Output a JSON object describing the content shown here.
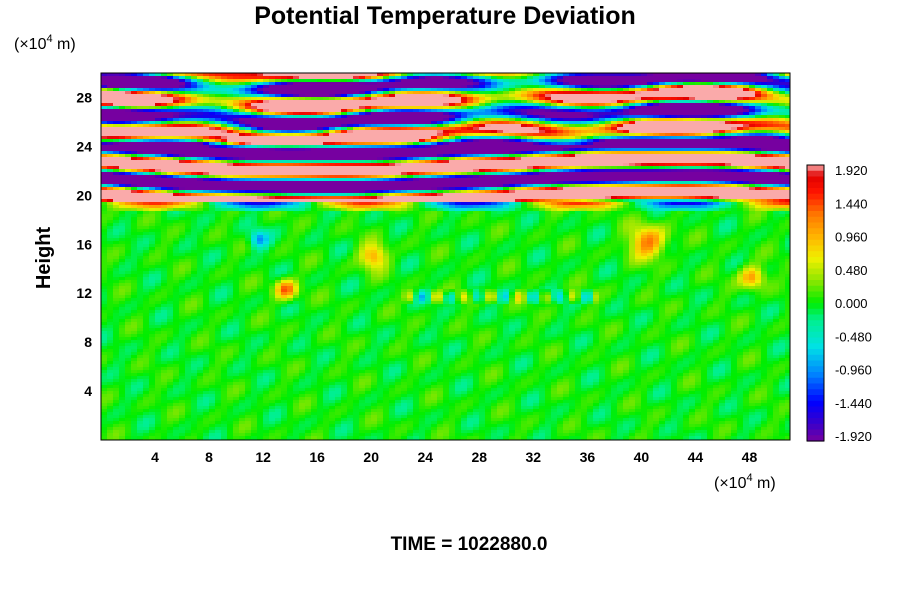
{
  "chart_data": {
    "type": "heatmap",
    "title": "Potential Temperature Deviation",
    "ylabel": "Height",
    "xunit": {
      "prefix": "(×10",
      "exp": "4",
      "suffix": " m)"
    },
    "yunit": {
      "prefix": "(×10",
      "exp": "4",
      "suffix": " m)"
    },
    "xlim": [
      0,
      51
    ],
    "ylim": [
      0,
      30
    ],
    "xticks": [
      "4",
      "8",
      "12",
      "16",
      "20",
      "24",
      "28",
      "32",
      "36",
      "40",
      "44",
      "48"
    ],
    "yticks": [
      "4",
      "8",
      "12",
      "16",
      "20",
      "24",
      "28"
    ],
    "colorbar": {
      "labels": [
        "1.920",
        "1.440",
        "0.960",
        "0.480",
        "0.000",
        "-0.480",
        "-0.960",
        "-1.440",
        "-1.920"
      ],
      "range": [
        -1.92,
        1.92
      ]
    },
    "time_label": "TIME = 1022880.0"
  }
}
